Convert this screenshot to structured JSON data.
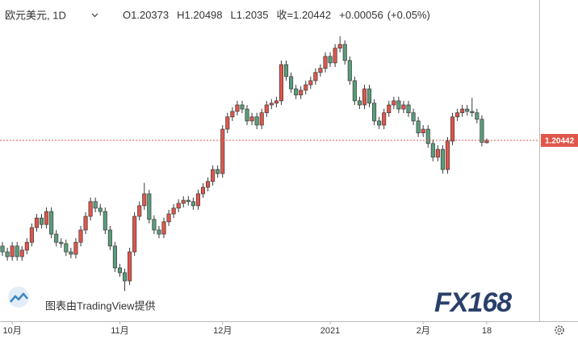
{
  "chart_data": {
    "type": "candlestick",
    "title": "欧元美元, 1D",
    "ohlc_labels": [
      "O",
      "H",
      "L",
      "收="
    ],
    "change": "+0.00056",
    "change_pct": "(+0.05%)",
    "attribution": "图表由TradingView提供",
    "watermark": "FX168",
    "up_color": "#e0564b",
    "down_color": "#5a9d7b",
    "ylim": [
      1.1515,
      1.2455
    ],
    "categories": [
      null,
      null,
      "10月",
      null,
      null,
      null,
      null,
      null,
      null,
      null,
      null,
      null,
      null,
      null,
      null,
      null,
      null,
      null,
      null,
      null,
      null,
      null,
      null,
      null,
      "11月",
      null,
      null,
      null,
      null,
      null,
      null,
      null,
      null,
      null,
      null,
      null,
      null,
      null,
      null,
      null,
      null,
      null,
      null,
      null,
      null,
      "12月",
      null,
      null,
      null,
      null,
      null,
      null,
      null,
      null,
      null,
      null,
      null,
      null,
      null,
      null,
      null,
      null,
      null,
      null,
      null,
      null,
      null,
      "2021",
      null,
      null,
      null,
      null,
      null,
      null,
      null,
      null,
      null,
      null,
      null,
      null,
      null,
      null,
      null,
      null,
      null,
      null,
      "2月",
      null,
      null,
      null,
      null,
      null,
      null,
      null,
      null,
      null,
      null,
      null,
      null,
      "18"
    ],
    "open": [
      1.1735,
      1.1718,
      1.1704,
      1.1735,
      1.1704,
      1.1723,
      1.1746,
      1.1789,
      1.1817,
      1.1798,
      1.1836,
      1.177,
      1.1746,
      1.1742,
      1.1718,
      1.1711,
      1.1746,
      1.1782,
      1.1822,
      1.1865,
      1.1846,
      1.1836,
      1.1782,
      1.1735,
      1.1671,
      1.1657,
      1.1633,
      1.1718,
      1.1822,
      1.1853,
      1.1888,
      1.1813,
      1.1782,
      1.177,
      1.1806,
      1.1829,
      1.1846,
      1.186,
      1.1869,
      1.1865,
      1.1853,
      1.1888,
      1.1907,
      1.1924,
      1.1959,
      1.1947,
      1.2077,
      1.2113,
      1.2129,
      1.2148,
      1.2136,
      1.2101,
      1.2113,
      1.2089,
      1.2125,
      1.2148,
      1.2153,
      1.216,
      1.2266,
      1.2231,
      1.2195,
      1.2177,
      1.2191,
      1.2207,
      1.2219,
      1.2243,
      1.2255,
      1.229,
      1.2271,
      1.2314,
      1.2325,
      1.2278,
      1.2219,
      1.216,
      1.2148,
      1.2195,
      1.2153,
      1.2101,
      1.2089,
      1.2125,
      1.2148,
      1.216,
      1.2136,
      1.2148,
      1.2125,
      1.2101,
      1.2066,
      1.2077,
      1.2035,
      1.1995,
      1.2018,
      1.1959,
      1.2042,
      1.2113,
      1.2125,
      1.2136,
      1.2129,
      1.2125,
      1.2106,
      1.20373
    ],
    "high": [
      1.1747,
      1.173,
      1.1747,
      1.1747,
      1.1735,
      1.1758,
      1.1801,
      1.1829,
      1.1829,
      1.1848,
      1.1848,
      1.1782,
      1.1758,
      1.1754,
      1.173,
      1.1758,
      1.1794,
      1.1834,
      1.1877,
      1.1877,
      1.1858,
      1.1848,
      1.1794,
      1.1747,
      1.1683,
      1.1669,
      1.173,
      1.1834,
      1.1865,
      1.192,
      1.19,
      1.1825,
      1.1794,
      1.1818,
      1.1841,
      1.1858,
      1.1872,
      1.1881,
      1.1881,
      1.1877,
      1.19,
      1.1919,
      1.1936,
      1.1971,
      1.1971,
      1.2089,
      1.2125,
      1.2141,
      1.216,
      1.216,
      1.2148,
      1.2125,
      1.2125,
      1.2137,
      1.216,
      1.2165,
      1.2172,
      1.2278,
      1.2278,
      1.2243,
      1.2207,
      1.2203,
      1.2219,
      1.2231,
      1.2255,
      1.2267,
      1.2302,
      1.2302,
      1.2326,
      1.2349,
      1.2337,
      1.229,
      1.2231,
      1.2172,
      1.2207,
      1.2207,
      1.2165,
      1.2113,
      1.2137,
      1.216,
      1.2172,
      1.2172,
      1.216,
      1.216,
      1.2137,
      1.2113,
      1.2089,
      1.2089,
      1.2047,
      1.203,
      1.203,
      1.2054,
      1.2125,
      1.2137,
      1.2148,
      1.2148,
      1.2169,
      1.2137,
      1.2118,
      1.20498
    ],
    "low": [
      1.1706,
      1.1692,
      1.1692,
      1.1692,
      1.1692,
      1.1711,
      1.1734,
      1.1777,
      1.1786,
      1.1786,
      1.1758,
      1.1734,
      1.173,
      1.1706,
      1.1699,
      1.1699,
      1.1734,
      1.177,
      1.181,
      1.1834,
      1.1824,
      1.177,
      1.1723,
      1.1659,
      1.1645,
      1.1603,
      1.1621,
      1.1706,
      1.181,
      1.1841,
      1.1801,
      1.177,
      1.1758,
      1.1758,
      1.1794,
      1.1817,
      1.1834,
      1.1848,
      1.1853,
      1.1841,
      1.1841,
      1.1876,
      1.1895,
      1.1912,
      1.1935,
      1.1935,
      1.2065,
      1.2101,
      1.2117,
      1.2124,
      1.2089,
      1.2089,
      1.2077,
      1.2077,
      1.2113,
      1.2136,
      1.2141,
      1.2148,
      1.2219,
      1.2183,
      1.2165,
      1.2165,
      1.2179,
      1.2195,
      1.2207,
      1.2231,
      1.2243,
      1.2259,
      1.2259,
      1.2302,
      1.2266,
      1.2207,
      1.2148,
      1.2136,
      1.2136,
      1.2141,
      1.2089,
      1.2077,
      1.2077,
      1.2113,
      1.2136,
      1.2124,
      1.2124,
      1.2113,
      1.2089,
      1.2054,
      1.2054,
      1.2023,
      1.1983,
      1.1983,
      1.1947,
      1.1947,
      1.203,
      1.2101,
      1.2113,
      1.2117,
      1.2113,
      1.2094,
      1.20266,
      1.2035
    ],
    "close": [
      1.1718,
      1.1704,
      1.1735,
      1.1704,
      1.1723,
      1.1746,
      1.1789,
      1.1817,
      1.1798,
      1.1836,
      1.177,
      1.1746,
      1.1742,
      1.1718,
      1.1711,
      1.1746,
      1.1782,
      1.1822,
      1.1865,
      1.1846,
      1.1836,
      1.1782,
      1.1735,
      1.1671,
      1.1657,
      1.1633,
      1.1718,
      1.1822,
      1.1853,
      1.1888,
      1.1813,
      1.1782,
      1.177,
      1.1806,
      1.1829,
      1.1846,
      1.186,
      1.1869,
      1.1865,
      1.1853,
      1.1888,
      1.1907,
      1.1924,
      1.1959,
      1.1947,
      1.2077,
      1.2113,
      1.2129,
      1.2148,
      1.2136,
      1.2101,
      1.2113,
      1.2089,
      1.2125,
      1.2148,
      1.2153,
      1.216,
      1.2266,
      1.2231,
      1.2195,
      1.2177,
      1.2191,
      1.2207,
      1.2219,
      1.2243,
      1.2255,
      1.229,
      1.2271,
      1.2314,
      1.2325,
      1.2278,
      1.2219,
      1.216,
      1.2148,
      1.2195,
      1.2153,
      1.2101,
      1.2089,
      1.2125,
      1.2148,
      1.216,
      1.2136,
      1.2148,
      1.2125,
      1.2101,
      1.2066,
      1.2077,
      1.2035,
      1.1995,
      1.2018,
      1.1959,
      1.2042,
      1.2113,
      1.2125,
      1.2136,
      1.2129,
      1.2125,
      1.2106,
      1.20386,
      1.20442
    ]
  }
}
